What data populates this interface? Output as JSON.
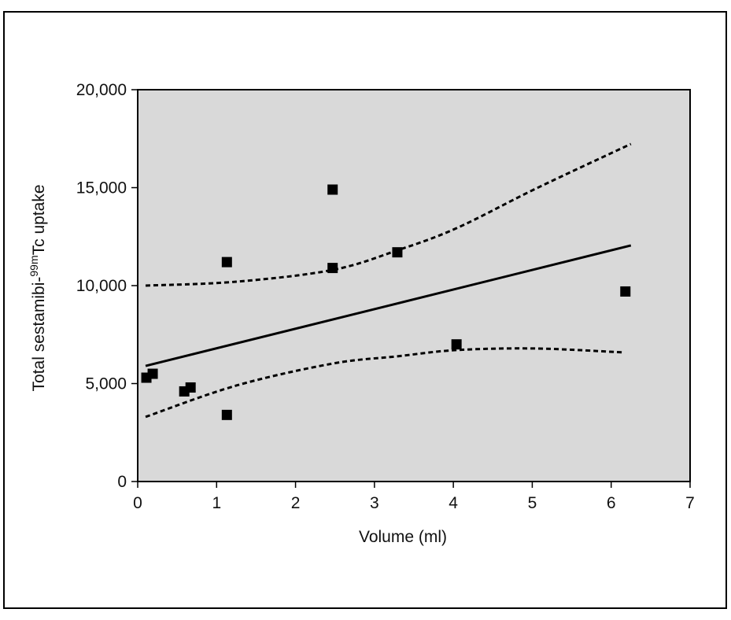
{
  "chart_data": {
    "type": "scatter",
    "xlabel": "Volume (ml)",
    "ylabel": {
      "prefix": "Total sestamibi-",
      "sup": "99m",
      "suffix": "Tc uptake"
    },
    "xlim": [
      0,
      7
    ],
    "ylim": [
      0,
      20000
    ],
    "xticks": [
      0,
      1,
      2,
      3,
      4,
      5,
      6,
      7
    ],
    "yticks": [
      0,
      {
        "value": 5000,
        "label": "5,000"
      },
      {
        "value": 10000,
        "label": "10,000"
      },
      {
        "value": 15000,
        "label": "15,000"
      },
      {
        "value": 20000,
        "label": "20,000"
      }
    ],
    "background": "#d9d9d9",
    "series": [
      {
        "mode": "markers",
        "color": "#000000",
        "x": [
          0.11,
          0.19,
          0.59,
          0.67,
          1.13,
          1.13,
          2.47,
          2.47,
          3.29,
          4.04,
          6.18
        ],
        "values": [
          5300,
          5500,
          4600,
          4800,
          11200,
          3400,
          14900,
          10900,
          11700,
          7000,
          9700
        ]
      },
      {
        "mode": "line",
        "dashed": false,
        "color": "#000000",
        "x": [
          0.1,
          6.25
        ],
        "values": [
          5900,
          12050
        ]
      },
      {
        "mode": "line",
        "dashed": true,
        "color": "#000000",
        "x": [
          0.1,
          1.25,
          2.47,
          3.29,
          4.04,
          5.04,
          6.25
        ],
        "values": [
          10000,
          10200,
          10800,
          11800,
          12930,
          14940,
          17230
        ]
      },
      {
        "mode": "line",
        "dashed": true,
        "color": "#000000",
        "x": [
          0.1,
          1.25,
          2.47,
          3.29,
          4.04,
          5.04,
          6.16
        ],
        "values": [
          3300,
          4900,
          6020,
          6390,
          6710,
          6790,
          6590
        ]
      }
    ]
  }
}
